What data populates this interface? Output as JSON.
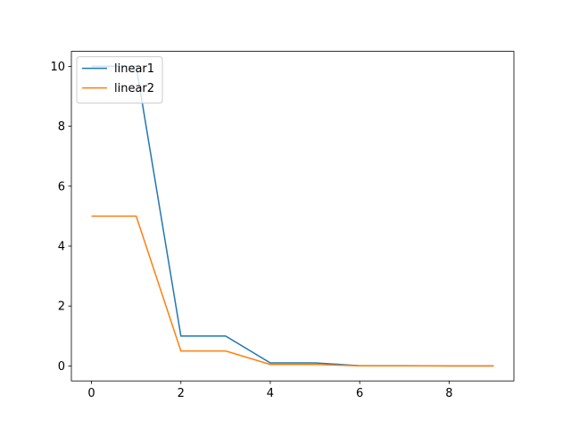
{
  "chart_data": {
    "type": "line",
    "x": [
      0,
      1,
      2,
      3,
      4,
      5,
      6,
      7,
      8,
      9
    ],
    "series": [
      {
        "name": "linear1",
        "color": "#1f77b4",
        "values": [
          10,
          10,
          1,
          1,
          0.1,
          0.1,
          0.01,
          0.01,
          0.001,
          0.001
        ]
      },
      {
        "name": "linear2",
        "color": "#ff7f0e",
        "values": [
          5,
          5,
          0.5,
          0.5,
          0.05,
          0.05,
          0.005,
          0.005,
          0.0005,
          0.0005
        ]
      }
    ],
    "xlim": [
      -0.45,
      9.45
    ],
    "xticks": [
      0,
      2,
      4,
      6,
      8
    ],
    "ylim": [
      -0.4995,
      10.49975
    ],
    "yticks": [
      0,
      2,
      4,
      6,
      8,
      10
    ],
    "grid": false,
    "legend": "upper-left"
  }
}
